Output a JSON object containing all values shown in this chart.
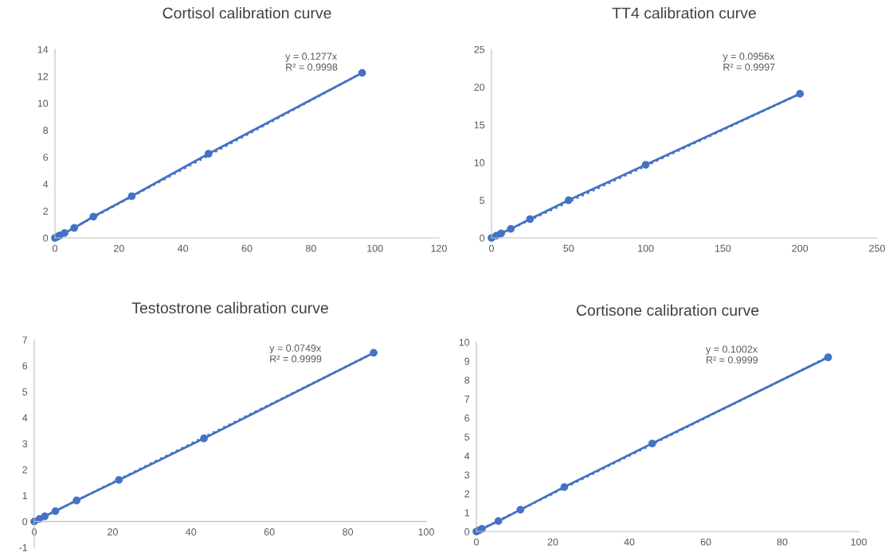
{
  "chart_data": [
    {
      "type": "line",
      "title": "Cortisol calibration curve",
      "xlim": [
        0,
        120
      ],
      "xticks": [
        0,
        20,
        40,
        60,
        80,
        100,
        120
      ],
      "ylim": [
        0,
        14
      ],
      "yticks": [
        0,
        2,
        4,
        6,
        8,
        10,
        12,
        14
      ],
      "grid": false,
      "marker": "circle",
      "series": [
        {
          "color": "#4472c4",
          "x": [
            0,
            0.75,
            1.5,
            3,
            6,
            12,
            24,
            48,
            96
          ],
          "values": [
            0,
            0.09,
            0.18,
            0.36,
            0.74,
            1.58,
            3.1,
            6.25,
            12.25
          ]
        },
        {
          "color": "#4472c4",
          "line_style": "dotted",
          "marker": "none",
          "x": [
            0,
            96
          ],
          "values": [
            0,
            12.26
          ]
        }
      ],
      "annotations": [
        "y = 0.1277x\nR² = 0.9998"
      ]
    },
    {
      "type": "line",
      "title": "TT4 calibration curve",
      "xlim": [
        0,
        250
      ],
      "xticks": [
        0,
        50,
        100,
        150,
        200,
        250
      ],
      "ylim": [
        0,
        25
      ],
      "yticks": [
        0,
        5,
        10,
        15,
        20,
        25
      ],
      "grid": false,
      "marker": "circle",
      "series": [
        {
          "color": "#4472c4",
          "x": [
            0,
            3.125,
            6.25,
            12.5,
            25,
            50,
            100,
            200
          ],
          "values": [
            0,
            0.3,
            0.6,
            1.2,
            2.5,
            5,
            9.7,
            19.1
          ]
        },
        {
          "color": "#4472c4",
          "line_style": "dotted",
          "marker": "none",
          "x": [
            0,
            200
          ],
          "values": [
            0,
            19.1
          ]
        }
      ],
      "annotations": [
        "y = 0.0956x\nR² = 0.9997"
      ]
    },
    {
      "type": "line",
      "title": "Testostrone calibration curve",
      "xlim": [
        0,
        100
      ],
      "xticks": [
        0,
        20,
        40,
        60,
        80,
        100
      ],
      "ylim": [
        -1,
        7
      ],
      "yticks": [
        -1,
        0,
        1,
        2,
        3,
        4,
        5,
        6,
        7
      ],
      "grid": false,
      "marker": "circle",
      "series": [
        {
          "color": "#4472c4",
          "x": [
            0,
            1.35,
            2.7,
            5.4,
            10.8,
            21.6,
            43.3,
            86.6
          ],
          "values": [
            0,
            0.1,
            0.2,
            0.4,
            0.81,
            1.6,
            3.2,
            6.5
          ]
        },
        {
          "color": "#4472c4",
          "line_style": "dotted",
          "marker": "none",
          "x": [
            0,
            86.6
          ],
          "values": [
            0,
            6.49
          ]
        }
      ],
      "annotations": [
        "y = 0.0749x\nR² = 0.9999"
      ]
    },
    {
      "type": "line",
      "title": "Cortisone calibration curve",
      "xlim": [
        0,
        100
      ],
      "xticks": [
        0,
        20,
        40,
        60,
        80,
        100
      ],
      "ylim": [
        0,
        10
      ],
      "yticks": [
        0,
        1,
        2,
        3,
        4,
        5,
        6,
        7,
        8,
        9,
        10
      ],
      "grid": false,
      "marker": "circle",
      "series": [
        {
          "color": "#4472c4",
          "x": [
            0,
            0.72,
            1.44,
            5.75,
            11.5,
            23,
            46,
            92
          ],
          "values": [
            0,
            0.07,
            0.14,
            0.55,
            1.15,
            2.35,
            4.65,
            9.2
          ]
        },
        {
          "color": "#4472c4",
          "line_style": "dotted",
          "marker": "none",
          "x": [
            0,
            92
          ],
          "values": [
            0,
            9.22
          ]
        }
      ],
      "annotations": [
        "y = 0.1002x\nR² = 0.9999"
      ]
    }
  ]
}
